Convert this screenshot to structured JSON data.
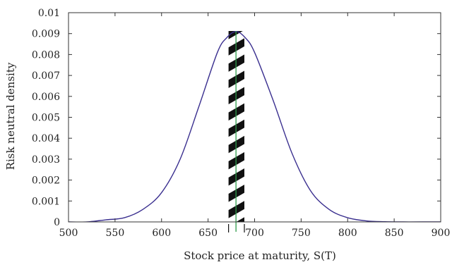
{
  "chart_data": {
    "type": "line",
    "xlabel": "Stock price at maturity, S(T)",
    "ylabel": "Risk neutral density",
    "xlim": [
      500,
      900
    ],
    "ylim": [
      0,
      0.01
    ],
    "x_ticks": [
      "500",
      "550",
      "600",
      "650",
      "700",
      "750",
      "800",
      "850",
      "900"
    ],
    "y_ticks": [
      "0",
      "0.001",
      "0.002",
      "0.003",
      "0.004",
      "0.005",
      "0.006",
      "0.007",
      "0.008",
      "0.009",
      "0.01"
    ],
    "grid": false,
    "legend": "none",
    "series": [
      {
        "x": [
          500,
          520,
          540,
          560,
          580,
          600,
          620,
          640,
          660,
          670,
          680,
          690,
          700,
          720,
          740,
          760,
          780,
          800,
          820,
          840,
          860,
          880,
          900
        ],
        "y": [
          0.0,
          0.0,
          0.0001,
          0.0002,
          0.0006,
          0.0014,
          0.003,
          0.0055,
          0.0081,
          0.0088,
          0.0091,
          0.0088,
          0.0081,
          0.0058,
          0.0033,
          0.0015,
          0.0006,
          0.0002,
          5e-05,
          1e-05,
          0.0,
          0.0,
          0.0
        ],
        "color": "#3a2f8f"
      }
    ],
    "hatched_band": {
      "x_from": 672,
      "x_to": 689
    },
    "vertical_line": {
      "x": 680,
      "color": "#2e9b4a"
    },
    "marker_ticks": [
      672,
      689
    ]
  }
}
